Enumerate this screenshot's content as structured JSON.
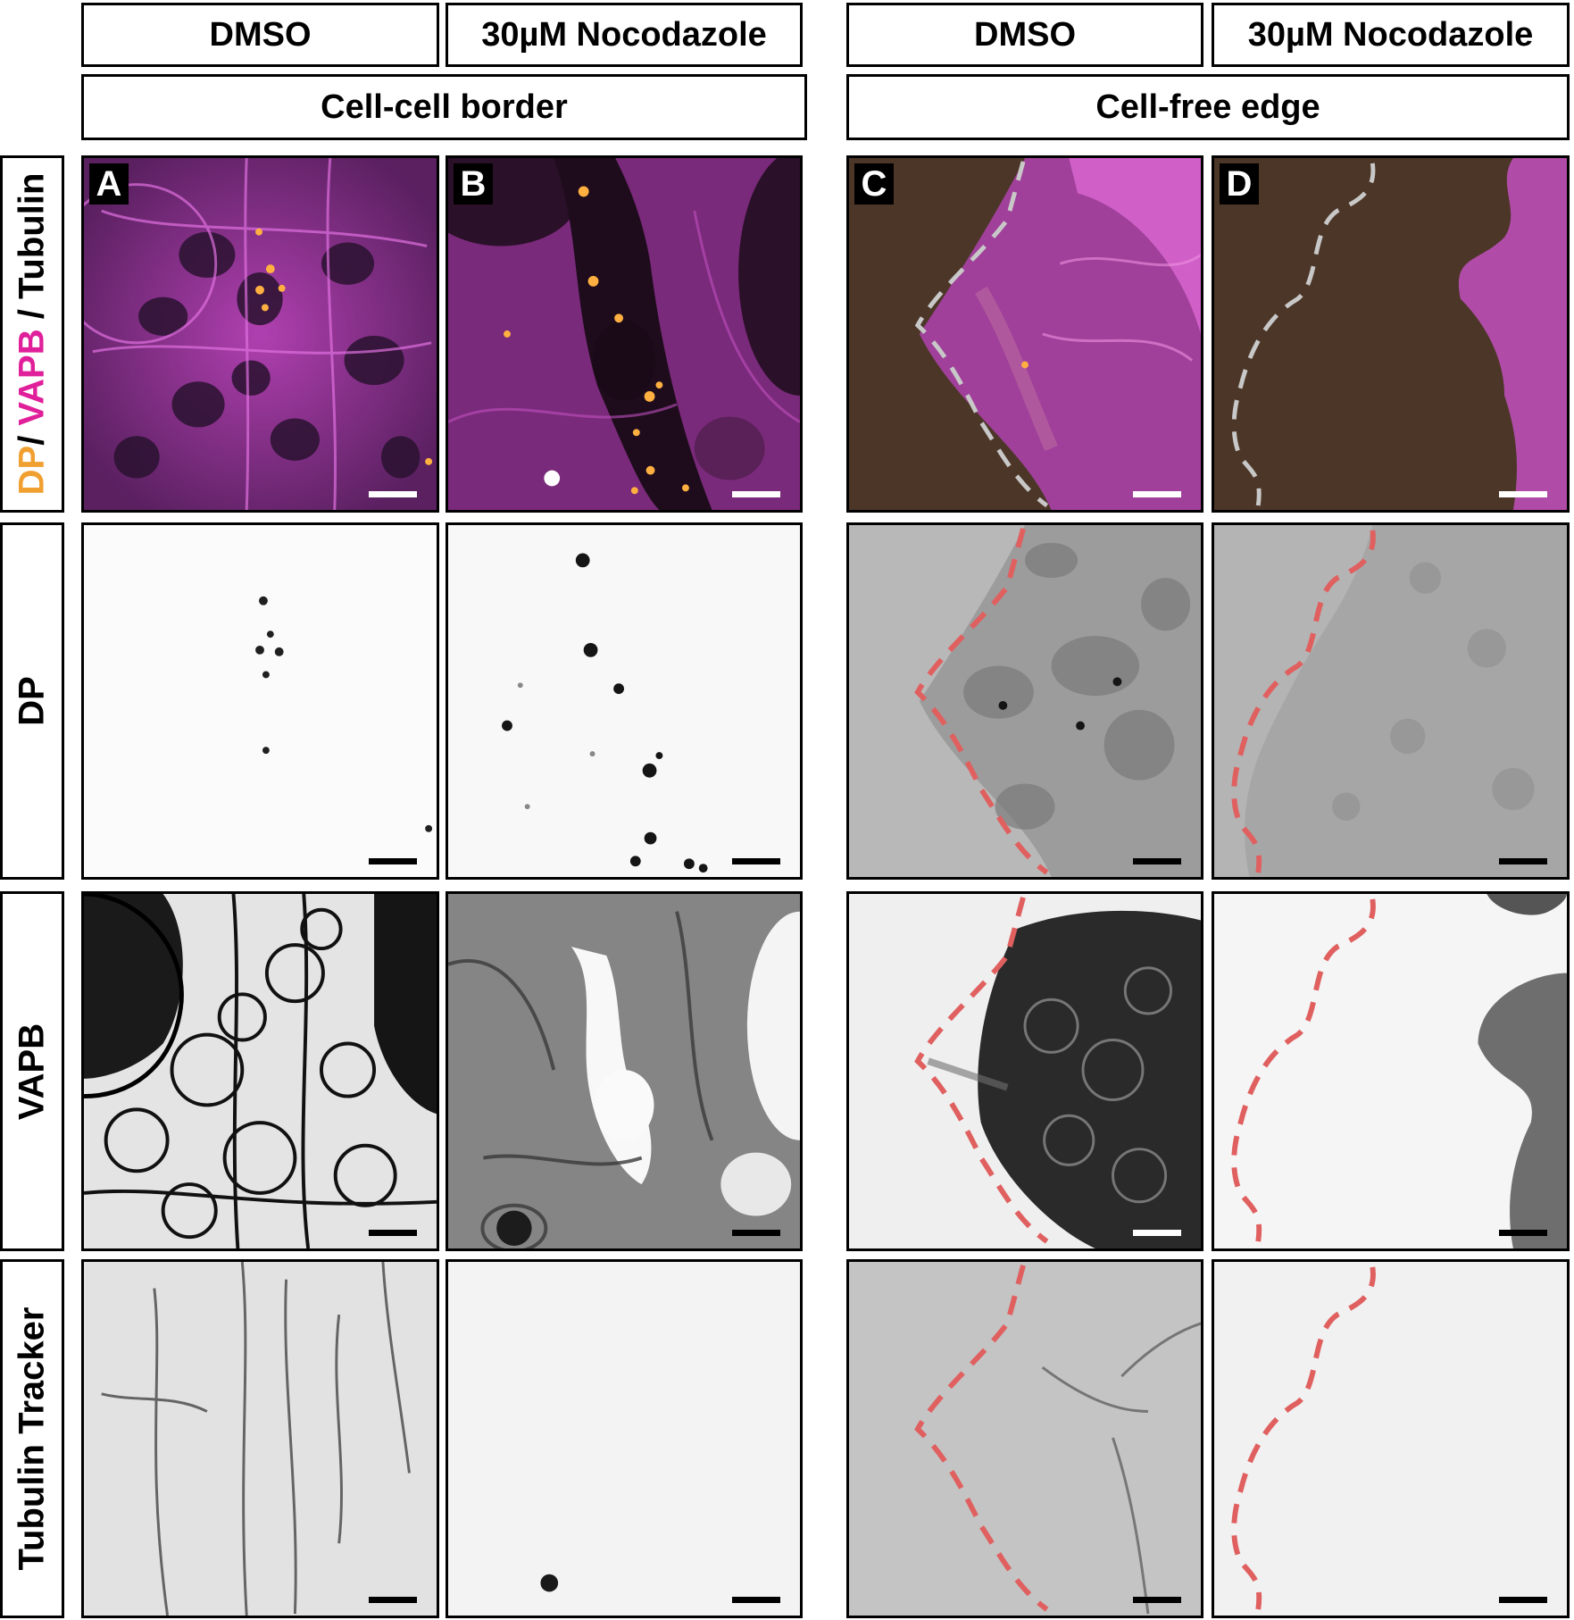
{
  "column_headers": [
    "DMSO",
    "30µM Nocodazole",
    "DMSO",
    "30µM Nocodazole"
  ],
  "group_headers": [
    "Cell-cell border",
    "Cell-free edge"
  ],
  "row_labels": {
    "merge": [
      "DP",
      "/ ",
      "VAPB",
      " / Tubulin"
    ],
    "dp": "DP",
    "vapb": "VAPB",
    "tubulin": "Tubulin Tracker"
  },
  "panel_letters": [
    "A",
    "B",
    "C",
    "D"
  ],
  "colors": {
    "dp_channel": "#f0a030",
    "vapb_channel": "#e0209a",
    "edge_outline_merge": "#c8c8c8",
    "edge_outline_gray": "#e06060"
  }
}
